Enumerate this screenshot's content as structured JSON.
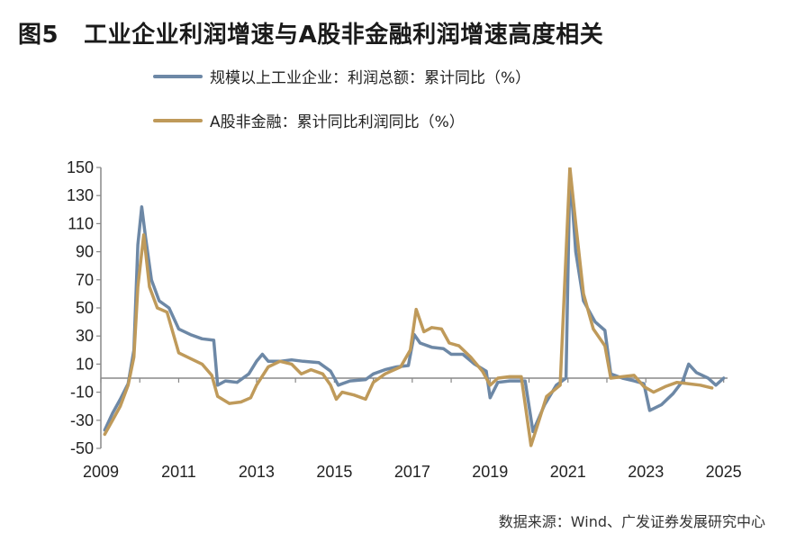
{
  "title": {
    "figure": "图5",
    "text": "工业企业利润增速与A股非金融利润增速高度相关"
  },
  "source": "数据来源：Wind、广发证券发展研究中心",
  "colors": {
    "series1": "#6d88a6",
    "series2": "#bf9a5a",
    "axis": "#888888"
  },
  "chart_data": {
    "type": "line",
    "title": "工业企业利润增速与A股非金融利润增速高度相关",
    "xlabel": "",
    "ylabel": "",
    "xlim": [
      2009.0,
      2025.1
    ],
    "ylim": [
      -50,
      150
    ],
    "x_ticks": [
      "2009",
      "2011",
      "2013",
      "2015",
      "2017",
      "2019",
      "2021",
      "2023",
      "2025"
    ],
    "y_ticks": [
      "150",
      "130",
      "110",
      "90",
      "70",
      "50",
      "30",
      "10",
      "-10",
      "-30",
      "-50"
    ],
    "legend": "top-left",
    "grid": false,
    "series": [
      {
        "name": "规模以上工业企业：利润总额：累计同比（%）",
        "points": [
          [
            2009.1,
            -37
          ],
          [
            2009.3,
            -25
          ],
          [
            2009.5,
            -15
          ],
          [
            2009.7,
            -4
          ],
          [
            2009.85,
            20
          ],
          [
            2009.95,
            95
          ],
          [
            2010.05,
            122
          ],
          [
            2010.15,
            100
          ],
          [
            2010.3,
            70
          ],
          [
            2010.5,
            55
          ],
          [
            2010.75,
            50
          ],
          [
            2011.0,
            35
          ],
          [
            2011.3,
            31
          ],
          [
            2011.6,
            28
          ],
          [
            2011.9,
            27
          ],
          [
            2012.0,
            -5
          ],
          [
            2012.2,
            -2
          ],
          [
            2012.5,
            -3
          ],
          [
            2012.8,
            3
          ],
          [
            2013.0,
            12
          ],
          [
            2013.15,
            17
          ],
          [
            2013.3,
            12
          ],
          [
            2013.6,
            12
          ],
          [
            2013.9,
            13
          ],
          [
            2014.2,
            12
          ],
          [
            2014.6,
            11
          ],
          [
            2014.9,
            5
          ],
          [
            2015.1,
            -5
          ],
          [
            2015.4,
            -2
          ],
          [
            2015.8,
            -1
          ],
          [
            2016.0,
            3
          ],
          [
            2016.3,
            6
          ],
          [
            2016.6,
            8
          ],
          [
            2016.9,
            9
          ],
          [
            2017.05,
            31
          ],
          [
            2017.2,
            25
          ],
          [
            2017.5,
            22
          ],
          [
            2017.8,
            21
          ],
          [
            2018.0,
            17
          ],
          [
            2018.3,
            17
          ],
          [
            2018.6,
            10
          ],
          [
            2018.9,
            5
          ],
          [
            2019.0,
            -14
          ],
          [
            2019.2,
            -3
          ],
          [
            2019.5,
            -2
          ],
          [
            2019.9,
            -2
          ],
          [
            2020.1,
            -38
          ],
          [
            2020.4,
            -19
          ],
          [
            2020.7,
            -5
          ],
          [
            2020.95,
            0
          ],
          [
            2021.05,
            148
          ],
          [
            2021.2,
            90
          ],
          [
            2021.4,
            55
          ],
          [
            2021.7,
            40
          ],
          [
            2021.95,
            34
          ],
          [
            2022.1,
            3
          ],
          [
            2022.4,
            0
          ],
          [
            2022.7,
            -2
          ],
          [
            2022.95,
            -4
          ],
          [
            2023.1,
            -23
          ],
          [
            2023.4,
            -19
          ],
          [
            2023.7,
            -11
          ],
          [
            2023.95,
            -2
          ],
          [
            2024.1,
            10
          ],
          [
            2024.3,
            4
          ],
          [
            2024.6,
            0
          ],
          [
            2024.8,
            -5
          ],
          [
            2025.0,
            0
          ]
        ]
      },
      {
        "name": "A股非金融：累计同比利润同比（%）",
        "points": [
          [
            2009.1,
            -40
          ],
          [
            2009.3,
            -30
          ],
          [
            2009.5,
            -20
          ],
          [
            2009.7,
            -5
          ],
          [
            2009.85,
            15
          ],
          [
            2009.95,
            65
          ],
          [
            2010.1,
            102
          ],
          [
            2010.25,
            65
          ],
          [
            2010.45,
            50
          ],
          [
            2010.7,
            47
          ],
          [
            2011.0,
            18
          ],
          [
            2011.3,
            14
          ],
          [
            2011.6,
            10
          ],
          [
            2011.85,
            2
          ],
          [
            2012.0,
            -13
          ],
          [
            2012.3,
            -18
          ],
          [
            2012.6,
            -17
          ],
          [
            2012.85,
            -14
          ],
          [
            2013.0,
            -5
          ],
          [
            2013.3,
            8
          ],
          [
            2013.6,
            12
          ],
          [
            2013.9,
            10
          ],
          [
            2014.15,
            3
          ],
          [
            2014.4,
            6
          ],
          [
            2014.7,
            3
          ],
          [
            2014.9,
            -5
          ],
          [
            2015.05,
            -15
          ],
          [
            2015.2,
            -10
          ],
          [
            2015.5,
            -12
          ],
          [
            2015.8,
            -15
          ],
          [
            2016.0,
            -3
          ],
          [
            2016.3,
            3
          ],
          [
            2016.7,
            8
          ],
          [
            2016.95,
            20
          ],
          [
            2017.1,
            49
          ],
          [
            2017.3,
            33
          ],
          [
            2017.5,
            36
          ],
          [
            2017.75,
            35
          ],
          [
            2017.95,
            25
          ],
          [
            2018.2,
            23
          ],
          [
            2018.5,
            15
          ],
          [
            2018.8,
            5
          ],
          [
            2019.0,
            -5
          ],
          [
            2019.2,
            0
          ],
          [
            2019.5,
            1
          ],
          [
            2019.8,
            1
          ],
          [
            2020.05,
            -48
          ],
          [
            2020.2,
            -35
          ],
          [
            2020.45,
            -13
          ],
          [
            2020.8,
            -5
          ],
          [
            2021.05,
            150
          ],
          [
            2021.2,
            110
          ],
          [
            2021.4,
            60
          ],
          [
            2021.65,
            35
          ],
          [
            2021.95,
            23
          ],
          [
            2022.1,
            0
          ],
          [
            2022.4,
            1
          ],
          [
            2022.7,
            2
          ],
          [
            2022.95,
            -6
          ],
          [
            2023.2,
            -10
          ],
          [
            2023.5,
            -6
          ],
          [
            2023.8,
            -3
          ],
          [
            2024.1,
            -4
          ],
          [
            2024.4,
            -5
          ],
          [
            2024.7,
            -7
          ]
        ]
      }
    ]
  }
}
